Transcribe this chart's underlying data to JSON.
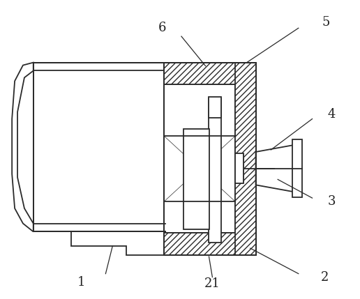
{
  "bg_color": "#ffffff",
  "line_color": "#2a2a2a",
  "label_color": "#222222",
  "label_fontsize": 13,
  "lw": 1.3
}
